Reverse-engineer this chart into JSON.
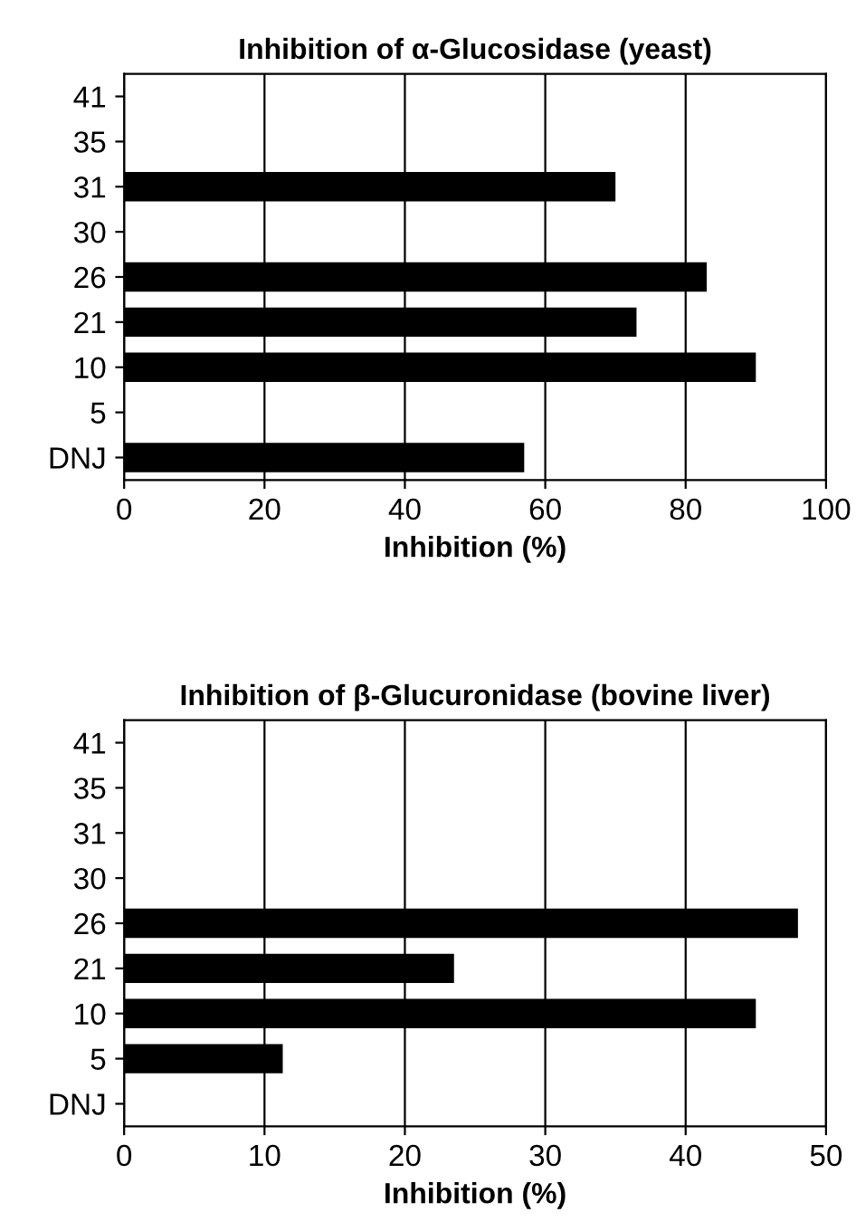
{
  "chart_data": [
    {
      "type": "bar",
      "orientation": "horizontal",
      "title": "Inhibition of α-Glucosidase (yeast)",
      "xlabel": "Inhibition (%)",
      "categories": [
        "41",
        "35",
        "31",
        "30",
        "26",
        "21",
        "10",
        "5",
        "DNJ"
      ],
      "values": [
        0,
        0,
        70,
        0,
        83,
        73,
        90,
        0,
        57
      ],
      "color": "#000000",
      "xlim": [
        0,
        100
      ],
      "xticks": [
        0,
        20,
        40,
        60,
        80,
        100
      ],
      "grid": "x"
    },
    {
      "type": "bar",
      "orientation": "horizontal",
      "title": "Inhibition of β-Glucuronidase (bovine liver)",
      "xlabel": "Inhibition (%)",
      "categories": [
        "41",
        "35",
        "31",
        "30",
        "26",
        "21",
        "10",
        "5",
        "DNJ"
      ],
      "values": [
        0,
        0,
        0,
        0,
        48,
        23.5,
        45,
        11.3,
        0
      ],
      "color": "#000000",
      "xlim": [
        0,
        50
      ],
      "xticks": [
        0,
        10,
        20,
        30,
        40,
        50
      ],
      "grid": "x"
    }
  ]
}
